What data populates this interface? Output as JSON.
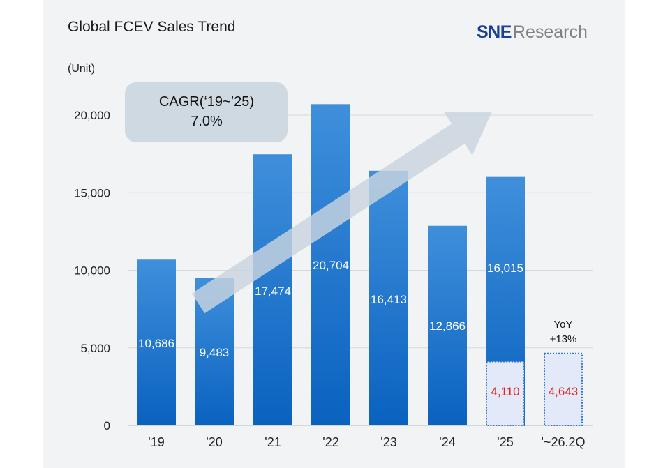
{
  "header": {
    "title": "Global FCEV Sales Trend",
    "unit": "(Unit)"
  },
  "logo": {
    "sne_text": "SNE",
    "research_text": "Research"
  },
  "callouts": {
    "cagr_line1": "CAGR(‘19~’25)",
    "cagr_line2": "7.0%",
    "yoy_line1": "YoY",
    "yoy_line2": "+13%"
  },
  "colors": {
    "bar_top": "#3f8fdb",
    "bar_bottom": "#0a62bf",
    "partial_fill": "#e3e9f8",
    "partial_border": "#2f78c8",
    "partial_label": "#e1261c",
    "arrow": "#c9d4de",
    "grid": "#d4d7db"
  },
  "chart_data": {
    "type": "bar",
    "title": "Global FCEV Sales Trend",
    "ylabel": "(Unit)",
    "ylim": [
      0,
      20000
    ],
    "yticks": [
      0,
      5000,
      10000,
      15000,
      20000
    ],
    "ytick_labels": [
      "0",
      "5,000",
      "10,000",
      "15,000",
      "20,000"
    ],
    "categories": [
      "'19",
      "'20",
      "'21",
      "'22",
      "'23",
      "'24",
      "'25",
      "'~26.2Q"
    ],
    "series": [
      {
        "values": [
          10686,
          9483,
          17474,
          20704,
          16413,
          12866,
          16015,
          null
        ],
        "labels": [
          "10,686",
          "9,483",
          "17,474",
          "20,704",
          "16,413",
          "12,866",
          "16,015",
          ""
        ]
      },
      {
        "values": [
          null,
          null,
          null,
          null,
          null,
          null,
          4110,
          4643
        ],
        "labels": [
          "",
          "",
          "",
          "",
          "",
          "",
          "4,110",
          "4,643"
        ]
      }
    ],
    "annotations": [
      "CAGR(‘19~’25) 7.0%",
      "YoY +13%"
    ],
    "grid": true
  }
}
